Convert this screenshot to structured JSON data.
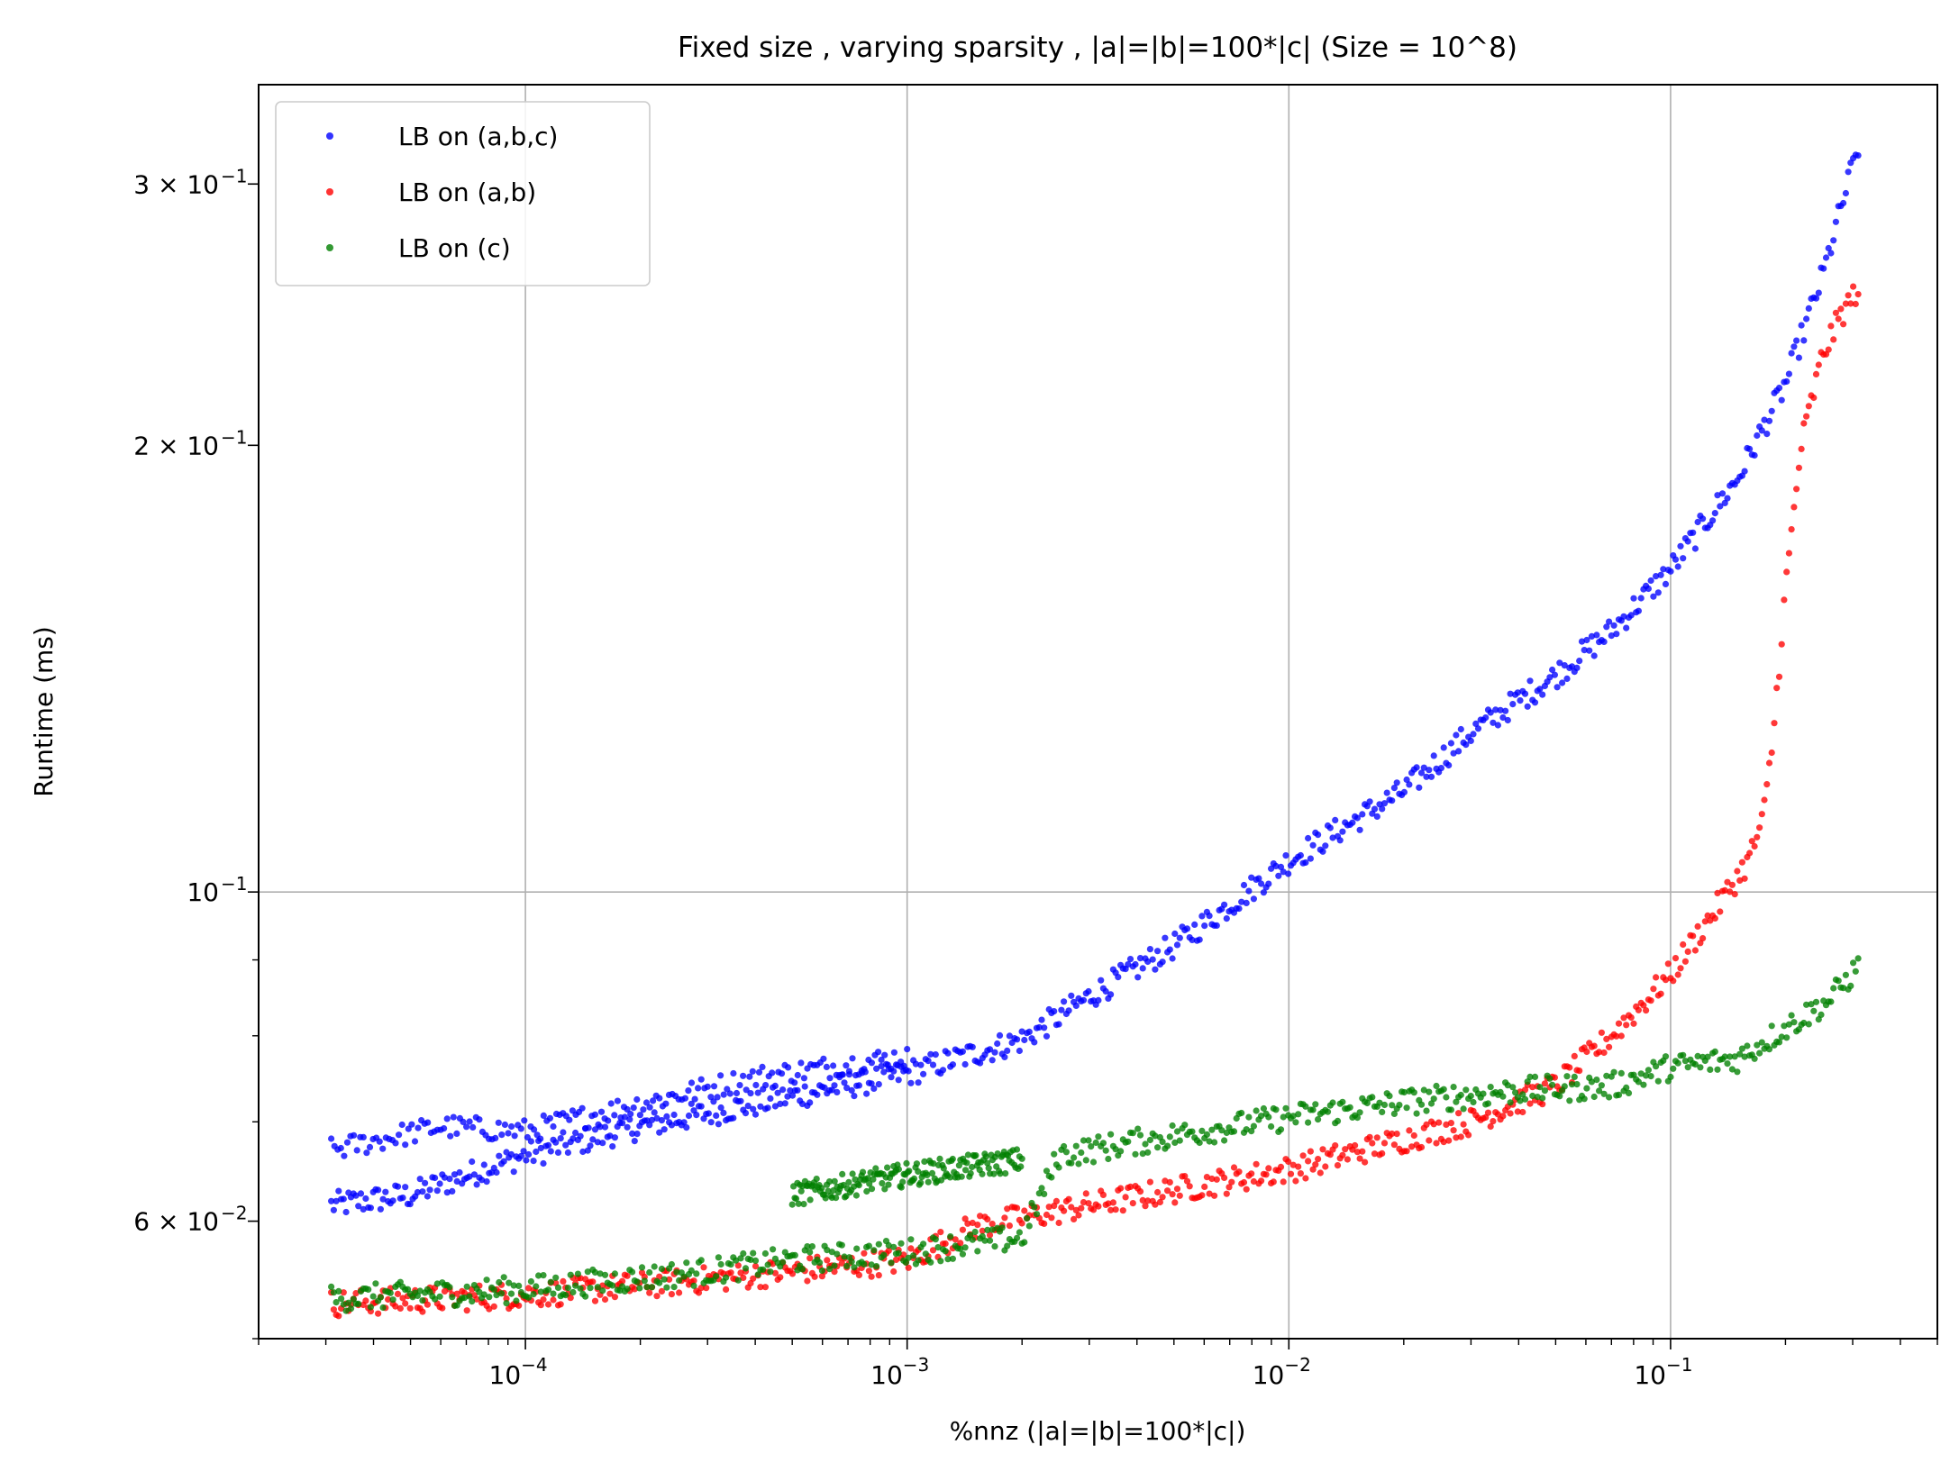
{
  "chart_data": {
    "type": "scatter",
    "title": "Fixed size , varying sparsity , |a|=|b|=100*|c| (Size = 10^8)",
    "xlabel": "%nnz (|a|=|b|=100*|c|)",
    "ylabel": "Runtime (ms)",
    "xscale": "log",
    "yscale": "log",
    "xlim": [
      2e-05,
      0.5
    ],
    "ylim": [
      0.05,
      0.35
    ],
    "grid": true,
    "legend_position": "top-left",
    "x_ticks": [
      {
        "value": 0.0001,
        "base": "10",
        "exp": "−4"
      },
      {
        "value": 0.001,
        "base": "10",
        "exp": "−3"
      },
      {
        "value": 0.01,
        "base": "10",
        "exp": "−2"
      },
      {
        "value": 0.1,
        "base": "10",
        "exp": "−1"
      }
    ],
    "y_ticks": [
      {
        "value": 0.06,
        "mant": "6 × 10",
        "exp": "−2"
      },
      {
        "value": 0.1,
        "mant": "10",
        "exp": "−1"
      },
      {
        "value": 0.2,
        "mant": "2 × 10",
        "exp": "−1"
      },
      {
        "value": 0.3,
        "mant": "3 × 10",
        "exp": "−1"
      }
    ],
    "x_range_observed": [
      3.1e-05,
      0.31
    ],
    "series": [
      {
        "name": "LB on (a,b,c)",
        "color": "#0000ff",
        "points": [
          [
            3.1e-05,
            0.0615
          ],
          [
            5e-05,
            0.0625
          ],
          [
            0.0001,
            0.0665
          ],
          [
            0.0002,
            0.0695
          ],
          [
            0.0004,
            0.072
          ],
          [
            0.001,
            0.0755
          ],
          [
            0.002,
            0.0795
          ],
          [
            0.003,
            0.085
          ],
          [
            0.005,
            0.092
          ],
          [
            0.007,
            0.098
          ],
          [
            0.01,
            0.105
          ],
          [
            0.02,
            0.117
          ],
          [
            0.03,
            0.128
          ],
          [
            0.05,
            0.14
          ],
          [
            0.07,
            0.15
          ],
          [
            0.1,
            0.165
          ],
          [
            0.15,
            0.19
          ],
          [
            0.2,
            0.22
          ],
          [
            0.25,
            0.26
          ],
          [
            0.31,
            0.318
          ]
        ],
        "upper_band": [
          [
            3.1e-05,
            0.067
          ],
          [
            6e-05,
            0.0695
          ],
          [
            0.0001,
            0.069
          ],
          [
            0.0002,
            0.072
          ],
          [
            0.0004,
            0.075
          ],
          [
            0.001,
            0.0775
          ]
        ]
      },
      {
        "name": "LB on (a,b)",
        "color": "#ff0000",
        "points": [
          [
            3.1e-05,
            0.0528
          ],
          [
            0.0001,
            0.0535
          ],
          [
            0.0003,
            0.0548
          ],
          [
            0.001,
            0.0565
          ],
          [
            0.0015,
            0.0595
          ],
          [
            0.003,
            0.0615
          ],
          [
            0.01,
            0.065
          ],
          [
            0.03,
            0.07
          ],
          [
            0.05,
            0.074
          ],
          [
            0.07,
            0.08
          ],
          [
            0.1,
            0.088
          ],
          [
            0.13,
            0.097
          ],
          [
            0.16,
            0.105
          ],
          [
            0.175,
            0.112
          ],
          [
            0.185,
            0.126
          ],
          [
            0.2,
            0.16
          ],
          [
            0.22,
            0.2
          ],
          [
            0.25,
            0.23
          ],
          [
            0.28,
            0.245
          ],
          [
            0.31,
            0.255
          ]
        ]
      },
      {
        "name": "LB on (c)",
        "color": "#008000",
        "points": [
          [
            3.1e-05,
            0.0532
          ],
          [
            0.0001,
            0.054
          ],
          [
            0.0003,
            0.0555
          ],
          [
            0.0005,
            0.0565
          ],
          [
            0.001,
            0.0572
          ],
          [
            0.002,
            0.0585
          ],
          [
            0.0025,
            0.0665
          ],
          [
            0.005,
            0.0685
          ],
          [
            0.01,
            0.0705
          ],
          [
            0.02,
            0.0722
          ],
          [
            0.04,
            0.0735
          ],
          [
            0.07,
            0.074
          ],
          [
            0.1,
            0.0762
          ],
          [
            0.15,
            0.0772
          ],
          [
            0.2,
            0.081
          ],
          [
            0.26,
            0.0845
          ],
          [
            0.31,
            0.089
          ]
        ],
        "upper_band": [
          [
            0.0005,
            0.0625
          ],
          [
            0.001,
            0.0645
          ],
          [
            0.002,
            0.066
          ]
        ]
      }
    ]
  }
}
